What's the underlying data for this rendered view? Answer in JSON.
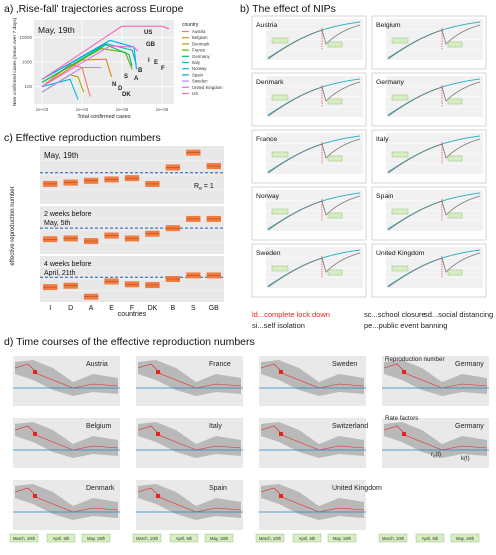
{
  "panels": {
    "a_title": "a) ‚Rise-fall' trajectories across Europe",
    "b_title": "b) The effect of NIPs",
    "c_title": "c) Effective reproduction numbers",
    "d_title": "d) Time courses of the effective reproduction numbers"
  },
  "panel_a": {
    "date_label": "May, 19th",
    "legend_title": "country",
    "ylabel": "New confirmed cases (mean over 7 days)",
    "xlabel": "Total confirmed cases",
    "countries": [
      "Austria",
      "Belgium",
      "Denmark",
      "France",
      "Germany",
      "Italy",
      "Norway",
      "Spain",
      "Sweden",
      "United Kingdom",
      "US"
    ],
    "colors": [
      "#f8766d",
      "#db8e00",
      "#aea200",
      "#64b200",
      "#00bd5c",
      "#00c1a7",
      "#00bade",
      "#00a6ff",
      "#b385ff",
      "#ef67eb",
      "#ff63b6"
    ],
    "curve_labels": [
      "US",
      "GB",
      "I",
      "E",
      "F",
      "B",
      "S",
      "A",
      "N",
      "D",
      "DK"
    ]
  },
  "panel_b": {
    "countries": [
      "Austria",
      "Belgium",
      "Denmark",
      "Germany",
      "France",
      "Italy",
      "Norway",
      "Spain",
      "Sweden",
      "United Kingdom"
    ],
    "legend": [
      {
        "text": "ld...complete lock down",
        "color": "#e8231f"
      },
      {
        "text": "sc...school closure",
        "color": "#222222"
      },
      {
        "text": "sd...social distancing",
        "color": "#222222"
      },
      {
        "text": "si...self isolation",
        "color": "#222222"
      },
      {
        "text": "pe...public event banning",
        "color": "#222222"
      }
    ]
  },
  "panel_c": {
    "ylabel": "effective reproduction number",
    "xlabel": "countries",
    "subpanels": [
      {
        "label": "May, 19th"
      },
      {
        "label": "2 weeks before May, 5th"
      },
      {
        "label": "4 weeks before April, 21th"
      }
    ],
    "rline_label": "R",
    "rline_sub": "e",
    "rline_value": "= 1"
  },
  "panel_d": {
    "countries": [
      "Austria",
      "France",
      "Sweden",
      "Germany",
      "Belgium",
      "Italy",
      "Switzerland",
      "Germany",
      "Denmark",
      "Spain",
      "United Kingdom"
    ],
    "reproduction_label": "Reproduction number",
    "rate_factors_label": "Rate factors",
    "k_label": "k(t)",
    "r_label": "r",
    "r_sub": "e",
    "r_suffix": "(t)",
    "legend_box_labels": [
      "March, 10th",
      "April, 5th",
      "May, 19th"
    ]
  },
  "chart_data": [
    {
      "type": "line",
      "title": "‚Rise-fall' trajectories across Europe",
      "xlabel": "Total confirmed cases",
      "ylabel": "New confirmed cases (mean over 7 days)",
      "xscale": "log",
      "yscale": "log",
      "x_ticks": [
        "1e+03",
        "1e+04",
        "1e+05",
        "1e+06"
      ],
      "y_ticks": [
        "100",
        "1000",
        "10000"
      ],
      "series": [
        {
          "name": "Austria",
          "x": [
            1000,
            5000,
            10000,
            16000
          ],
          "y": [
            100,
            800,
            600,
            40
          ]
        },
        {
          "name": "Belgium",
          "x": [
            1000,
            10000,
            40000,
            55000
          ],
          "y": [
            100,
            1200,
            1300,
            250
          ]
        },
        {
          "name": "Denmark",
          "x": [
            1000,
            5000,
            8000,
            11000
          ],
          "y": [
            60,
            300,
            250,
            60
          ]
        },
        {
          "name": "France",
          "x": [
            1000,
            30000,
            120000,
            180000
          ],
          "y": [
            150,
            3500,
            2500,
            500
          ]
        },
        {
          "name": "Germany",
          "x": [
            1000,
            40000,
            150000,
            177000
          ],
          "y": [
            150,
            5000,
            2000,
            700
          ]
        },
        {
          "name": "Italy",
          "x": [
            1000,
            40000,
            180000,
            226000
          ],
          "y": [
            200,
            5500,
            3000,
            800
          ]
        },
        {
          "name": "Norway",
          "x": [
            1000,
            5000,
            8000
          ],
          "y": [
            100,
            200,
            30
          ]
        },
        {
          "name": "Spain",
          "x": [
            1000,
            50000,
            200000,
            231000
          ],
          "y": [
            200,
            7500,
            4000,
            500
          ]
        },
        {
          "name": "Sweden",
          "x": [
            1000,
            10000,
            30000
          ],
          "y": [
            60,
            600,
            600
          ]
        },
        {
          "name": "United Kingdom",
          "x": [
            1000,
            50000,
            200000,
            248000
          ],
          "y": [
            100,
            4500,
            4000,
            2700
          ]
        },
        {
          "name": "US",
          "x": [
            1000,
            100000,
            1000000,
            1500000
          ],
          "y": [
            200,
            28000,
            28000,
            22000
          ]
        }
      ]
    },
    {
      "type": "bar",
      "title": "Effective reproduction numbers",
      "xlabel": "countries",
      "ylabel": "effective reproduction number",
      "categories": [
        "I",
        "D",
        "A",
        "E",
        "F",
        "DK",
        "B",
        "S",
        "GB"
      ],
      "reference_line": 1,
      "series": [
        {
          "name": "May, 19th",
          "values": [
            0.75,
            0.78,
            0.82,
            0.85,
            0.88,
            0.75,
            1.12,
            1.45,
            1.15
          ]
        },
        {
          "name": "2 weeks before May, 5th",
          "values": [
            0.7,
            0.72,
            0.65,
            0.8,
            0.72,
            0.85,
            1.0,
            1.25,
            1.25
          ]
        },
        {
          "name": "4 weeks before April, 21th",
          "values": [
            0.72,
            0.76,
            0.45,
            0.88,
            0.8,
            0.78,
            0.95,
            1.05,
            1.05
          ]
        }
      ]
    }
  ]
}
